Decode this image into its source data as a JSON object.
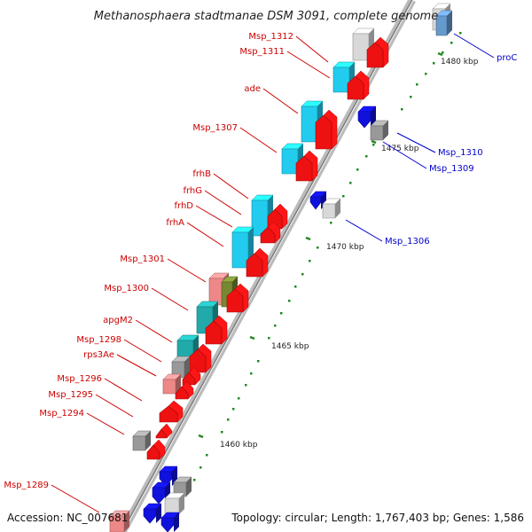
{
  "title": "Methanosphaera stadtmanae DSM 3091, complete genome",
  "accession": "Accession: NC_007681",
  "summary": "Topology: circular; Length: 1,767,403 bp; Genes: 1,586",
  "colors": {
    "forward_label": "#cc0000",
    "reverse_label": "#0000cc",
    "forward_gene": "#ee1111",
    "cyan_gene": "#22ccee",
    "teal_gene": "#22aaaa",
    "gray_gene": "#999999",
    "light_gray_gene": "#d8d8d8",
    "blue_gene": "#1111dd",
    "pink_gene": "#ee8888",
    "olive_gene": "#778833",
    "axis": "#999999",
    "tick": "#228822"
  },
  "ticks": [
    "1480 kbp",
    "1475 kbp",
    "1470 kbp",
    "1465 kbp",
    "1460 kbp"
  ],
  "forward_labels": [
    "Msp_1312",
    "Msp_1311",
    "ade",
    "Msp_1307",
    "frhB",
    "frhG",
    "frhD",
    "frhA",
    "Msp_1301",
    "Msp_1300",
    "apgM2",
    "Msp_1298",
    "rps3Ae",
    "Msp_1296",
    "Msp_1295",
    "Msp_1294",
    "Msp_1289"
  ],
  "reverse_labels": [
    "proC",
    "Msp_1310",
    "Msp_1309",
    "Msp_1306"
  ]
}
